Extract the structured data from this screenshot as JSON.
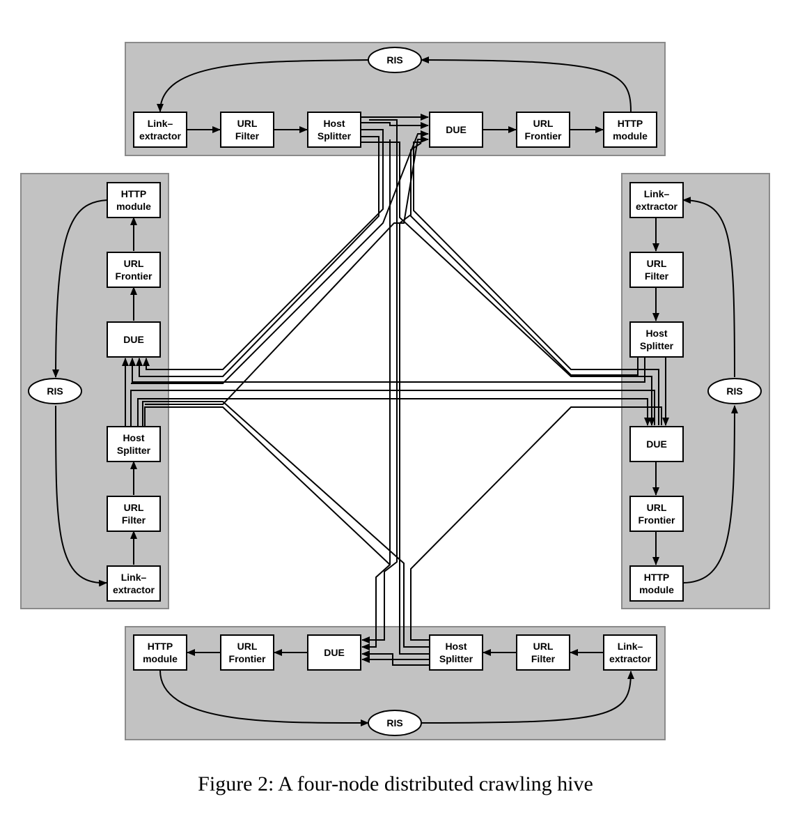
{
  "nodes": {
    "top": {
      "ris": "RIS",
      "link_extractor": [
        "Link–",
        "extractor"
      ],
      "url_filter": [
        "URL",
        "Filter"
      ],
      "host_splitter": [
        "Host",
        "Splitter"
      ],
      "due": "DUE",
      "url_frontier": [
        "URL",
        "Frontier"
      ],
      "http_module": [
        "HTTP",
        "module"
      ]
    },
    "left": {
      "ris": "RIS",
      "http_module": [
        "HTTP",
        "module"
      ],
      "url_frontier": [
        "URL",
        "Frontier"
      ],
      "due": "DUE",
      "host_splitter": [
        "Host",
        "Splitter"
      ],
      "url_filter": [
        "URL",
        "Filter"
      ],
      "link_extractor": [
        "Link–",
        "extractor"
      ]
    },
    "right": {
      "ris": "RIS",
      "link_extractor": [
        "Link–",
        "extractor"
      ],
      "url_filter": [
        "URL",
        "Filter"
      ],
      "host_splitter": [
        "Host",
        "Splitter"
      ],
      "due": "DUE",
      "url_frontier": [
        "URL",
        "Frontier"
      ],
      "http_module": [
        "HTTP",
        "module"
      ]
    },
    "bottom": {
      "ris": "RIS",
      "http_module": [
        "HTTP",
        "module"
      ],
      "url_frontier": [
        "URL",
        "Frontier"
      ],
      "due": "DUE",
      "host_splitter": [
        "Host",
        "Splitter"
      ],
      "url_filter": [
        "URL",
        "Filter"
      ],
      "link_extractor": [
        "Link–",
        "extractor"
      ]
    }
  },
  "caption": "Figure 2: A four-node distributed crawling hive"
}
